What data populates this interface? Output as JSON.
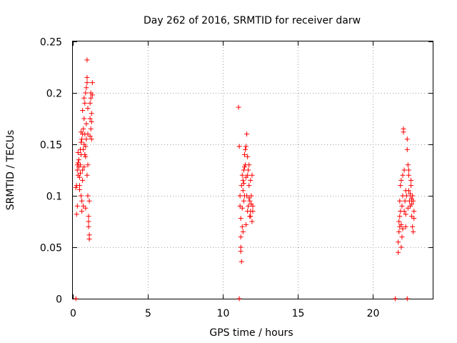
{
  "chart_data": {
    "type": "scatter",
    "title": "Day 262 of 2016, SRMTID for receiver darw",
    "xlabel": "GPS time / hours",
    "ylabel": "SRMTID / TECUs",
    "xlim": [
      0,
      24
    ],
    "ylim": [
      0,
      0.25
    ],
    "xticks": [
      0,
      5,
      10,
      15,
      20
    ],
    "yticks": [
      0,
      0.05,
      0.1,
      0.15,
      0.2,
      0.25
    ],
    "xtick_labels": [
      "0",
      "5",
      "10",
      "15",
      "20"
    ],
    "ytick_labels": [
      "0",
      "0.05",
      "0.1",
      "0.15",
      "0.2",
      "0.25"
    ],
    "grid": true,
    "marker": "plus",
    "color": "#ff0000",
    "points": [
      [
        0.2,
        0.108
      ],
      [
        0.25,
        0.11
      ],
      [
        0.3,
        0.125
      ],
      [
        0.3,
        0.13
      ],
      [
        0.35,
        0.12
      ],
      [
        0.35,
        0.132
      ],
      [
        0.4,
        0.128
      ],
      [
        0.4,
        0.135
      ],
      [
        0.45,
        0.11
      ],
      [
        0.45,
        0.118
      ],
      [
        0.5,
        0.122
      ],
      [
        0.5,
        0.13
      ],
      [
        0.5,
        0.145
      ],
      [
        0.55,
        0.1
      ],
      [
        0.55,
        0.14
      ],
      [
        0.55,
        0.152
      ],
      [
        0.6,
        0.085
      ],
      [
        0.6,
        0.095
      ],
      [
        0.6,
        0.155
      ],
      [
        0.65,
        0.16
      ],
      [
        0.65,
        0.115
      ],
      [
        0.7,
        0.145
      ],
      [
        0.7,
        0.165
      ],
      [
        0.7,
        0.09
      ],
      [
        0.75,
        0.15
      ],
      [
        0.75,
        0.175
      ],
      [
        0.8,
        0.14
      ],
      [
        0.8,
        0.16
      ],
      [
        0.8,
        0.19
      ],
      [
        0.85,
        0.148
      ],
      [
        0.85,
        0.2
      ],
      [
        0.85,
        0.088
      ],
      [
        0.9,
        0.155
      ],
      [
        0.9,
        0.205
      ],
      [
        0.9,
        0.17
      ],
      [
        0.95,
        0.21
      ],
      [
        0.95,
        0.215
      ],
      [
        0.95,
        0.232
      ],
      [
        1.0,
        0.16
      ],
      [
        1.0,
        0.185
      ],
      [
        1.0,
        0.1
      ],
      [
        1.05,
        0.075
      ],
      [
        1.05,
        0.08
      ],
      [
        1.05,
        0.07
      ],
      [
        1.1,
        0.062
      ],
      [
        1.1,
        0.058
      ],
      [
        1.1,
        0.095
      ],
      [
        1.15,
        0.175
      ],
      [
        1.15,
        0.19
      ],
      [
        1.2,
        0.195
      ],
      [
        1.2,
        0.2
      ],
      [
        1.25,
        0.155
      ],
      [
        1.25,
        0.18
      ],
      [
        1.3,
        0.21
      ],
      [
        1.3,
        0.198
      ],
      [
        1.2,
        0.165
      ],
      [
        0.25,
        0.082
      ],
      [
        0.3,
        0.09
      ],
      [
        0.45,
        0.106
      ],
      [
        0.65,
        0.125
      ],
      [
        0.75,
        0.128
      ],
      [
        0.85,
        0.138
      ],
      [
        0.95,
        0.12
      ],
      [
        1.0,
        0.13
      ],
      [
        1.15,
        0.158
      ],
      [
        1.25,
        0.172
      ],
      [
        0.35,
        0.142
      ],
      [
        0.55,
        0.162
      ],
      [
        0.65,
        0.183
      ],
      [
        0.75,
        0.195
      ],
      [
        11.05,
        0.186
      ],
      [
        11.1,
        0.148
      ],
      [
        11.15,
        0.1
      ],
      [
        11.15,
        0.09
      ],
      [
        11.2,
        0.06
      ],
      [
        11.2,
        0.05
      ],
      [
        11.2,
        0.046
      ],
      [
        11.25,
        0.036
      ],
      [
        11.25,
        0.11
      ],
      [
        11.3,
        0.12
      ],
      [
        11.3,
        0.07
      ],
      [
        11.35,
        0.065
      ],
      [
        11.35,
        0.115
      ],
      [
        11.4,
        0.125
      ],
      [
        11.4,
        0.095
      ],
      [
        11.45,
        0.128
      ],
      [
        11.45,
        0.14
      ],
      [
        11.5,
        0.13
      ],
      [
        11.5,
        0.145
      ],
      [
        11.55,
        0.118
      ],
      [
        11.55,
        0.148
      ],
      [
        11.6,
        0.16
      ],
      [
        11.6,
        0.1
      ],
      [
        11.65,
        0.12
      ],
      [
        11.65,
        0.085
      ],
      [
        11.7,
        0.125
      ],
      [
        11.7,
        0.09
      ],
      [
        11.75,
        0.11
      ],
      [
        11.75,
        0.13
      ],
      [
        11.8,
        0.095
      ],
      [
        11.8,
        0.08
      ],
      [
        11.85,
        0.115
      ],
      [
        11.85,
        0.085
      ],
      [
        11.9,
        0.1
      ],
      [
        11.9,
        0.092
      ],
      [
        11.95,
        0.075
      ],
      [
        11.95,
        0.12
      ],
      [
        12.0,
        0.09
      ],
      [
        12.0,
        0.085
      ],
      [
        11.3,
        0.088
      ],
      [
        11.35,
        0.105
      ],
      [
        11.45,
        0.1
      ],
      [
        11.55,
        0.072
      ],
      [
        11.65,
        0.138
      ],
      [
        11.75,
        0.098
      ],
      [
        11.85,
        0.08
      ],
      [
        11.2,
        0.078
      ],
      [
        11.4,
        0.112
      ],
      [
        21.7,
        0.045
      ],
      [
        21.7,
        0.055
      ],
      [
        21.75,
        0.065
      ],
      [
        21.75,
        0.075
      ],
      [
        21.8,
        0.07
      ],
      [
        21.8,
        0.08
      ],
      [
        21.85,
        0.085
      ],
      [
        21.85,
        0.11
      ],
      [
        21.9,
        0.115
      ],
      [
        21.9,
        0.05
      ],
      [
        21.95,
        0.06
      ],
      [
        21.95,
        0.09
      ],
      [
        22.0,
        0.1
      ],
      [
        22.0,
        0.12
      ],
      [
        22.05,
        0.162
      ],
      [
        22.05,
        0.165
      ],
      [
        22.1,
        0.125
      ],
      [
        22.1,
        0.085
      ],
      [
        22.15,
        0.095
      ],
      [
        22.2,
        0.07
      ],
      [
        22.2,
        0.105
      ],
      [
        22.25,
        0.1
      ],
      [
        22.3,
        0.145
      ],
      [
        22.3,
        0.155
      ],
      [
        22.35,
        0.13
      ],
      [
        22.35,
        0.088
      ],
      [
        22.4,
        0.12
      ],
      [
        22.4,
        0.105
      ],
      [
        22.45,
        0.095
      ],
      [
        22.5,
        0.1
      ],
      [
        22.5,
        0.09
      ],
      [
        22.55,
        0.11
      ],
      [
        22.55,
        0.115
      ],
      [
        22.6,
        0.092
      ],
      [
        22.6,
        0.08
      ],
      [
        22.65,
        0.07
      ],
      [
        22.65,
        0.1
      ],
      [
        22.7,
        0.065
      ],
      [
        22.7,
        0.095
      ],
      [
        22.75,
        0.085
      ],
      [
        22.75,
        0.078
      ],
      [
        21.8,
        0.095
      ],
      [
        21.9,
        0.072
      ],
      [
        22.0,
        0.068
      ],
      [
        22.2,
        0.082
      ],
      [
        22.4,
        0.125
      ],
      [
        22.5,
        0.102
      ],
      [
        22.6,
        0.097
      ],
      [
        0.2,
        0.0
      ],
      [
        11.1,
        0.0
      ],
      [
        21.5,
        0.0
      ],
      [
        22.3,
        0.0
      ]
    ]
  }
}
